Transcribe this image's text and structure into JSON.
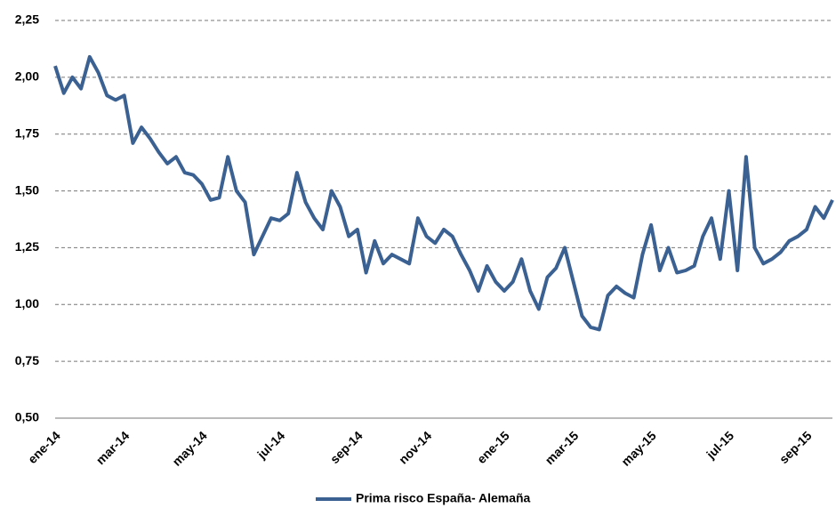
{
  "chart_data": {
    "type": "line",
    "categories": [
      "ene-14",
      null,
      null,
      null,
      null,
      null,
      null,
      null,
      "mar-14",
      null,
      null,
      null,
      null,
      null,
      null,
      null,
      null,
      "may-14",
      null,
      null,
      null,
      null,
      null,
      null,
      null,
      null,
      "jul-14",
      null,
      null,
      null,
      null,
      null,
      null,
      null,
      null,
      "sep-14",
      null,
      null,
      null,
      null,
      null,
      null,
      null,
      "nov-14",
      null,
      null,
      null,
      null,
      null,
      null,
      null,
      null,
      "ene-15",
      null,
      null,
      null,
      null,
      null,
      null,
      null,
      "mar-15",
      null,
      null,
      null,
      null,
      null,
      null,
      null,
      null,
      "may-15",
      null,
      null,
      null,
      null,
      null,
      null,
      null,
      null,
      "jul-15",
      null,
      null,
      null,
      null,
      null,
      null,
      null,
      null,
      "sep-15",
      null,
      null,
      null
    ],
    "series": [
      {
        "name": "Prima risco España- Alemaña",
        "color": "#3b6192",
        "values": [
          2.05,
          1.93,
          2.0,
          1.95,
          2.09,
          2.02,
          1.92,
          1.9,
          1.92,
          1.71,
          1.78,
          1.73,
          1.67,
          1.62,
          1.65,
          1.58,
          1.57,
          1.53,
          1.46,
          1.47,
          1.65,
          1.5,
          1.45,
          1.22,
          1.3,
          1.38,
          1.37,
          1.4,
          1.58,
          1.45,
          1.38,
          1.33,
          1.5,
          1.43,
          1.3,
          1.33,
          1.14,
          1.28,
          1.18,
          1.22,
          1.2,
          1.18,
          1.38,
          1.3,
          1.27,
          1.33,
          1.3,
          1.22,
          1.15,
          1.06,
          1.17,
          1.1,
          1.06,
          1.1,
          1.2,
          1.06,
          0.98,
          1.12,
          1.16,
          1.25,
          1.1,
          0.95,
          0.9,
          0.89,
          1.04,
          1.08,
          1.05,
          1.03,
          1.22,
          1.35,
          1.15,
          1.25,
          1.14,
          1.15,
          1.17,
          1.3,
          1.38,
          1.2,
          1.5,
          1.15,
          1.65,
          1.25,
          1.18,
          1.2,
          1.23,
          1.28,
          1.3,
          1.33,
          1.43,
          1.38,
          1.46
        ]
      }
    ],
    "ylim": [
      0.5,
      2.25
    ],
    "yticks": [
      {
        "value": 0.5,
        "label": "0,50"
      },
      {
        "value": 0.75,
        "label": "0,75"
      },
      {
        "value": 1.0,
        "label": "1,00"
      },
      {
        "value": 1.25,
        "label": "1,25"
      },
      {
        "value": 1.5,
        "label": "1,50"
      },
      {
        "value": 1.75,
        "label": "1,75"
      },
      {
        "value": 2.0,
        "label": "2,00"
      },
      {
        "value": 2.25,
        "label": "2,25"
      }
    ],
    "grid": true
  }
}
